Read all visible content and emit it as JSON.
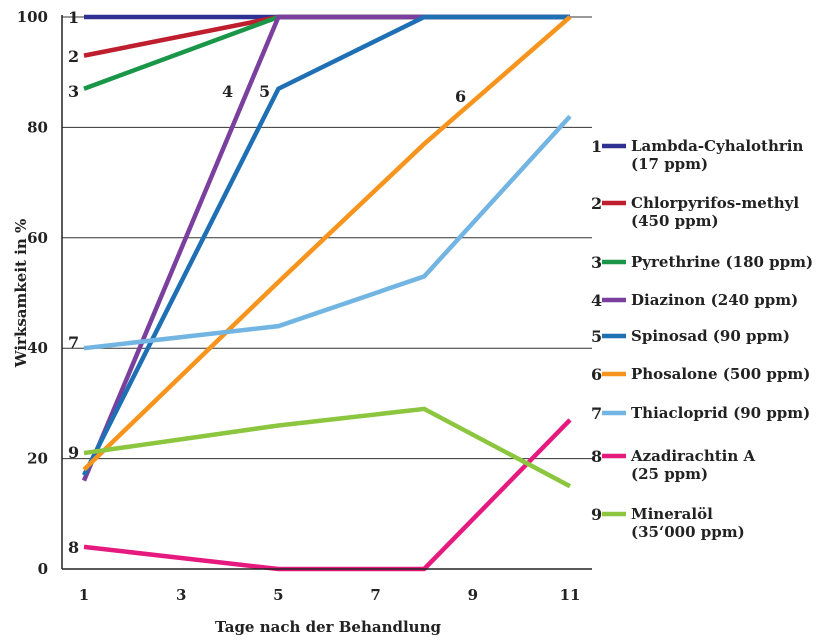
{
  "chart_data": {
    "type": "line",
    "xlabel": "Tage nach der Behandlung",
    "ylabel": "Wirksamkeit in %",
    "xlim": [
      1,
      11
    ],
    "ylim": [
      0,
      100
    ],
    "x_ticks": [
      "1",
      "3",
      "5",
      "7",
      "9",
      "11"
    ],
    "y_ticks": [
      "0",
      "20",
      "40",
      "60",
      "80",
      "100"
    ],
    "x_tick_values": [
      1,
      3,
      5,
      7,
      9,
      11
    ],
    "y_tick_values": [
      0,
      20,
      40,
      60,
      80,
      100
    ],
    "grid": "horizontal",
    "legend_position": "right",
    "series": [
      {
        "id": "1",
        "name_line1": "Lambda-Cyhalothrin",
        "name_line2": "(17 ppm)",
        "color": "#2e3192",
        "x": [
          1,
          5,
          8,
          11
        ],
        "y": [
          100,
          100,
          100,
          100
        ]
      },
      {
        "id": "2",
        "name_line1": "Chlorpyrifos-methyl",
        "name_line2": "(450 ppm)",
        "color": "#be1e2d",
        "x": [
          1,
          5,
          8,
          11
        ],
        "y": [
          93,
          100,
          100,
          100
        ]
      },
      {
        "id": "3",
        "name_line1": "Pyrethrine (180 ppm)",
        "name_line2": "",
        "color": "#1a9648",
        "x": [
          1,
          5,
          8,
          11
        ],
        "y": [
          87,
          100,
          100,
          100
        ]
      },
      {
        "id": "4",
        "name_line1": "Diazinon (240 ppm)",
        "name_line2": "",
        "color": "#7b3f9e",
        "x": [
          1,
          5,
          8,
          11
        ],
        "y": [
          16,
          100,
          100,
          100
        ]
      },
      {
        "id": "5",
        "name_line1": "Spinosad (90 ppm)",
        "name_line2": "",
        "color": "#1f6fb5",
        "x": [
          1,
          5,
          8,
          11
        ],
        "y": [
          17,
          87,
          100,
          100
        ]
      },
      {
        "id": "6",
        "name_line1": "Phosalone (500 ppm)",
        "name_line2": "",
        "color": "#f7941d",
        "x": [
          1,
          5,
          8,
          11
        ],
        "y": [
          18,
          52,
          77,
          100
        ]
      },
      {
        "id": "7",
        "name_line1": "Thiacloprid (90 ppm)",
        "name_line2": "",
        "color": "#72b4e2",
        "x": [
          1,
          5,
          8,
          11
        ],
        "y": [
          40,
          44,
          53,
          82
        ]
      },
      {
        "id": "8",
        "name_line1": "Azadirachtin A",
        "name_line2": "(25 ppm)",
        "color": "#e6197f",
        "x": [
          1,
          5,
          8,
          11
        ],
        "y": [
          4,
          0,
          0,
          27
        ]
      },
      {
        "id": "9",
        "name_line1": "Mineralöl",
        "name_line2": "(35‘000 ppm)",
        "color": "#8cc63f",
        "x": [
          1,
          5,
          8,
          11
        ],
        "y": [
          21,
          26,
          29,
          15
        ]
      }
    ]
  }
}
